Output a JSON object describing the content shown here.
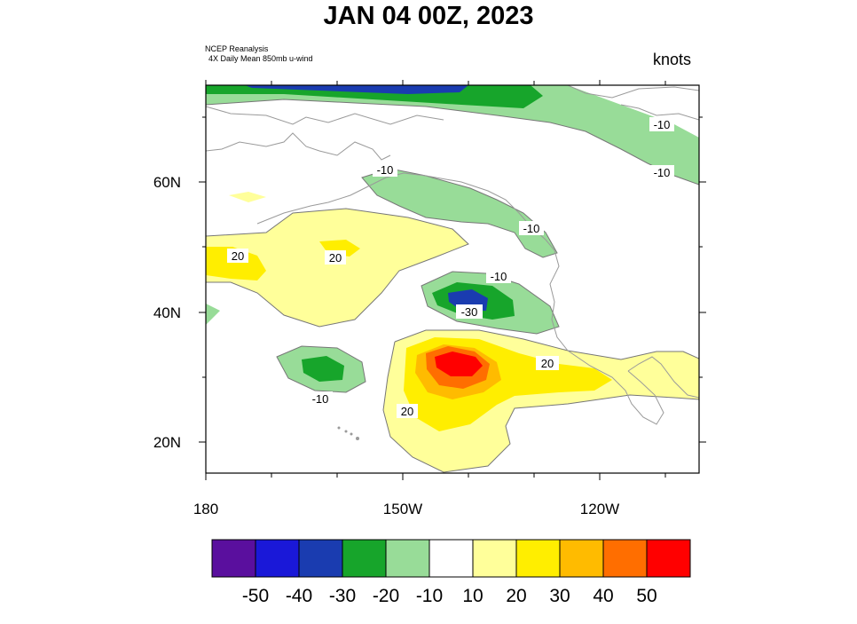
{
  "title": "JAN 04 00Z, 2023",
  "source_line1": "NCEP Reanalysis",
  "source_line2": "4X Daily Mean 850mb u-wind",
  "units": "knots",
  "lon_labels": [
    "180",
    "150W",
    "120W"
  ],
  "lat_labels": [
    "60N",
    "40N",
    "20N"
  ],
  "contour_labels": [
    "-10",
    "-10",
    "-10",
    "-10",
    "20",
    "20",
    "-10",
    "-30",
    "20",
    "-10",
    "20"
  ],
  "colorbar": {
    "colors": [
      "#5a0f9e",
      "#1a18d8",
      "#1a3cb0",
      "#17a52b",
      "#98dc98",
      "#ffffff",
      "#ffff9a",
      "#ffee00",
      "#ffbb00",
      "#ff6e00",
      "#ff0000"
    ],
    "tick_labels": [
      "-50",
      "-40",
      "-30",
      "-20",
      "-10",
      "10",
      "20",
      "30",
      "40",
      "50"
    ]
  },
  "map": {
    "lon_range": [
      "180",
      "105W"
    ],
    "lat_range": [
      "15N",
      "75N"
    ]
  }
}
